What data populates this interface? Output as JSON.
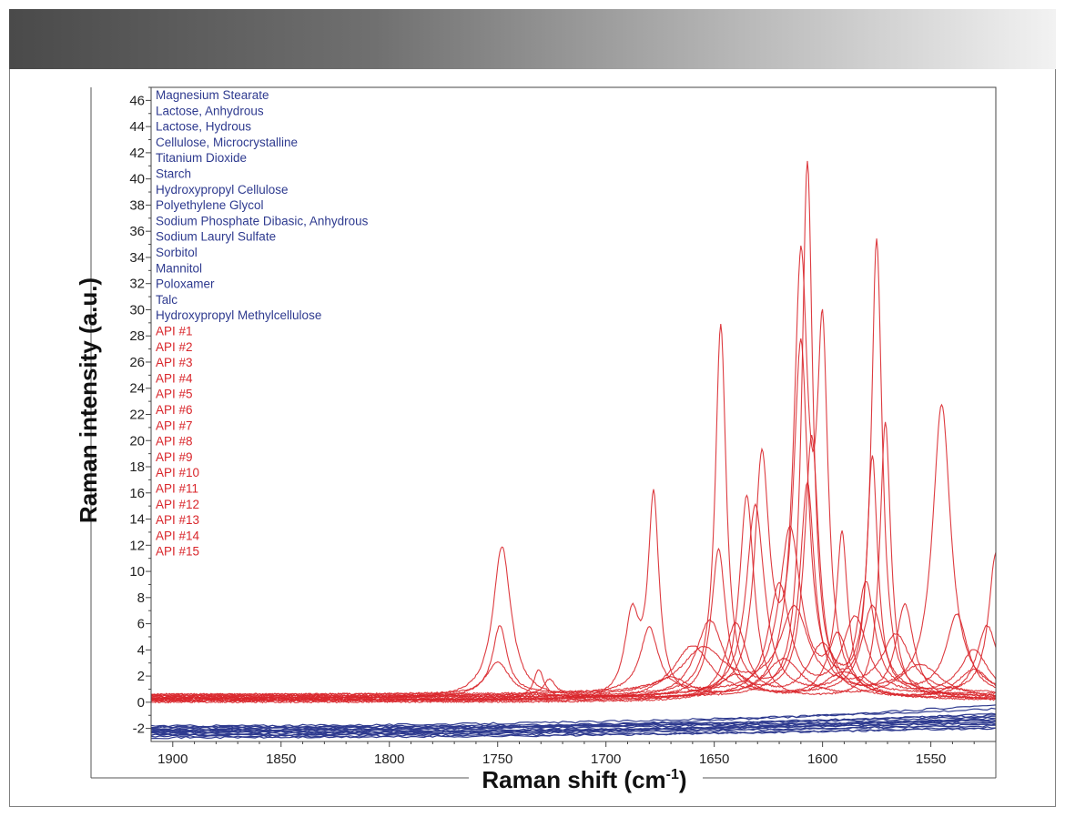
{
  "header": {
    "gradient_start": "#4a4a4a",
    "gradient_end": "#f2f2f2"
  },
  "chart_data": {
    "type": "line",
    "xlabel": "Raman shift (cm",
    "xlabel_sup": "-1",
    "xlabel_close": ")",
    "ylabel": "Raman intensity (a.u.)",
    "xlim": [
      1910,
      1520
    ],
    "ylim": [
      -3,
      47
    ],
    "x_reversed": true,
    "x_ticks": [
      1900,
      1850,
      1800,
      1750,
      1700,
      1650,
      1600,
      1550
    ],
    "x_tick_labels": [
      "1900",
      "1850",
      "1800",
      "1750",
      "1700",
      "1650",
      "1600",
      "1550"
    ],
    "y_ticks": [
      -2,
      0,
      2,
      4,
      6,
      8,
      10,
      12,
      14,
      16,
      18,
      20,
      22,
      24,
      26,
      28,
      30,
      32,
      34,
      36,
      38,
      40,
      42,
      44,
      46
    ],
    "y_tick_labels": [
      "-2",
      "0",
      "2",
      "4",
      "6",
      "8",
      "10",
      "12",
      "14",
      "16",
      "18",
      "20",
      "22",
      "24",
      "26",
      "28",
      "30",
      "32",
      "34",
      "36",
      "38",
      "40",
      "42",
      "44",
      "46"
    ],
    "excipient_color": "#2e3a8f",
    "api_color": "#d9262b",
    "legend_excipients": [
      "Magnesium Stearate",
      "Lactose, Anhydrous",
      "Lactose, Hydrous",
      "Cellulose, Microcrystalline",
      "Titanium Dioxide",
      "Starch",
      "Hydroxypropyl Cellulose",
      "Polyethylene Glycol",
      "Sodium Phosphate Dibasic, Anhydrous",
      "Sodium Lauryl Sulfate",
      "Sorbitol",
      "Mannitol",
      "Poloxamer",
      "Talc",
      "Hydroxypropyl Methylcellulose"
    ],
    "legend_apis": [
      "API #1",
      "API #2",
      "API #3",
      "API #4",
      "API #5",
      "API #6",
      "API #7",
      "API #8",
      "API #9",
      "API #10",
      "API #11",
      "API #12",
      "API #13",
      "API #14",
      "API #15"
    ],
    "series_excipients": [
      {
        "start": -1.9,
        "end": -1.0
      },
      {
        "start": -2.1,
        "end": -1.3
      },
      {
        "start": -2.3,
        "end": -1.5
      },
      {
        "start": -2.5,
        "end": -1.7
      },
      {
        "start": -2.7,
        "end": -1.9
      },
      {
        "start": -1.8,
        "end": -0.5
      },
      {
        "start": -2.0,
        "end": -1.1
      },
      {
        "start": -2.2,
        "end": -1.6
      },
      {
        "start": -2.4,
        "end": -1.2
      },
      {
        "start": -2.6,
        "end": -2.0
      },
      {
        "start": -1.9,
        "end": -1.4
      },
      {
        "start": -2.1,
        "end": -0.9
      },
      {
        "start": -2.3,
        "end": -1.8
      },
      {
        "start": -2.5,
        "end": -1.3
      },
      {
        "start": -2.2,
        "end": -0.2
      }
    ],
    "series_apis": [
      {
        "baseline": 0.3,
        "peaks": [
          {
            "x": 1748,
            "h": 11.6,
            "w": 5
          },
          {
            "x": 1607,
            "h": 40.8,
            "w": 3
          },
          {
            "x": 1575,
            "h": 34.8,
            "w": 3
          }
        ]
      },
      {
        "baseline": 0.5,
        "peaks": [
          {
            "x": 1647,
            "h": 28.2,
            "w": 3
          },
          {
            "x": 1607,
            "h": 16,
            "w": 4
          },
          {
            "x": 1545,
            "h": 22.2,
            "w": 5
          }
        ]
      },
      {
        "baseline": 0.1,
        "peaks": [
          {
            "x": 1678,
            "h": 15.2,
            "w": 3
          },
          {
            "x": 1688,
            "h": 6.0,
            "w": 4
          },
          {
            "x": 1610,
            "h": 32.6,
            "w": 4
          },
          {
            "x": 1600,
            "h": 25.4,
            "w": 3
          }
        ]
      },
      {
        "baseline": 0.4,
        "peaks": [
          {
            "x": 1628,
            "h": 17.6,
            "w": 4
          },
          {
            "x": 1610,
            "h": 26.4,
            "w": 4
          },
          {
            "x": 1577,
            "h": 18.0,
            "w": 3
          }
        ]
      },
      {
        "baseline": 0.2,
        "peaks": [
          {
            "x": 1635,
            "h": 15.6,
            "w": 4
          },
          {
            "x": 1571,
            "h": 21.2,
            "w": 3
          }
        ]
      },
      {
        "baseline": 0.6,
        "peaks": [
          {
            "x": 1749,
            "h": 5.2,
            "w": 4
          },
          {
            "x": 1680,
            "h": 5.0,
            "w": 5
          },
          {
            "x": 1615,
            "h": 12.6,
            "w": 6
          },
          {
            "x": 1591,
            "h": 11.8,
            "w": 3
          }
        ]
      },
      {
        "baseline": 0.3,
        "peaks": [
          {
            "x": 1750,
            "h": 2.7,
            "w": 7
          },
          {
            "x": 1648,
            "h": 11.2,
            "w": 4
          },
          {
            "x": 1605,
            "h": 20.0,
            "w": 4
          }
        ]
      },
      {
        "baseline": 0.4,
        "peaks": [
          {
            "x": 1631,
            "h": 14.6,
            "w": 5
          },
          {
            "x": 1580,
            "h": 8.6,
            "w": 5
          },
          {
            "x": 1538,
            "h": 6.2,
            "w": 6
          }
        ]
      },
      {
        "baseline": 0.2,
        "peaks": [
          {
            "x": 1731,
            "h": 2.2,
            "w": 3
          },
          {
            "x": 1652,
            "h": 6.0,
            "w": 8
          },
          {
            "x": 1593,
            "h": 5.0,
            "w": 6
          },
          {
            "x": 1524,
            "h": 5.6,
            "w": 6
          }
        ]
      },
      {
        "baseline": 0.5,
        "peaks": [
          {
            "x": 1726,
            "h": 1.2,
            "w": 3
          },
          {
            "x": 1660,
            "h": 3.8,
            "w": 10
          },
          {
            "x": 1577,
            "h": 6.8,
            "w": 6
          },
          {
            "x": 1520,
            "h": 10.8,
            "w": 4
          }
        ]
      },
      {
        "baseline": 0.1,
        "peaks": [
          {
            "x": 1640,
            "h": 5.8,
            "w": 6
          },
          {
            "x": 1600,
            "h": 4.2,
            "w": 8
          },
          {
            "x": 1562,
            "h": 7.2,
            "w": 5
          }
        ]
      },
      {
        "baseline": 0.3,
        "peaks": [
          {
            "x": 1620,
            "h": 8.6,
            "w": 6
          },
          {
            "x": 1585,
            "h": 6.0,
            "w": 7
          },
          {
            "x": 1530,
            "h": 3.6,
            "w": 8
          }
        ]
      },
      {
        "baseline": 0.6,
        "peaks": [
          {
            "x": 1655,
            "h": 3.4,
            "w": 12
          },
          {
            "x": 1613,
            "h": 6.4,
            "w": 8
          },
          {
            "x": 1566,
            "h": 4.4,
            "w": 8
          }
        ]
      },
      {
        "baseline": 0.2,
        "peaks": [
          {
            "x": 1670,
            "h": 1.6,
            "w": 10
          },
          {
            "x": 1618,
            "h": 3.0,
            "w": 10
          },
          {
            "x": 1555,
            "h": 2.6,
            "w": 12
          }
        ]
      },
      {
        "baseline": 0.0,
        "peaks": [
          {
            "x": 1640,
            "h": 2.0,
            "w": 10
          },
          {
            "x": 1590,
            "h": 2.2,
            "w": 12
          },
          {
            "x": 1530,
            "h": 2.4,
            "w": 10
          }
        ]
      }
    ]
  }
}
